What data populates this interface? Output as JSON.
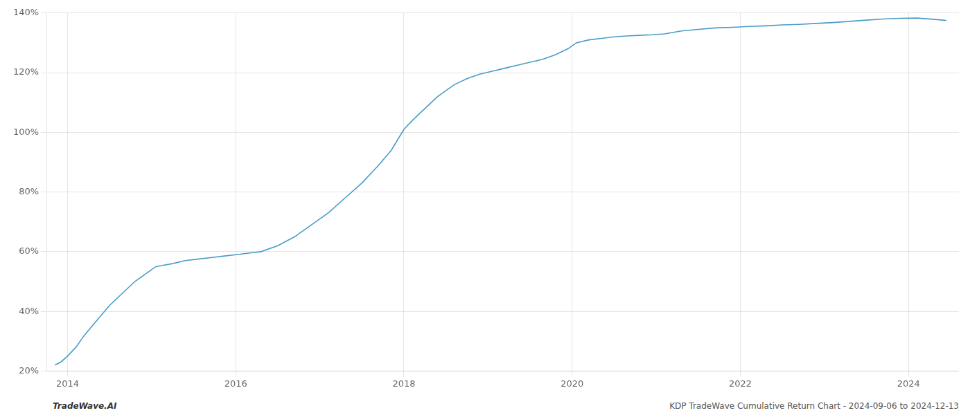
{
  "chart_data": {
    "type": "line",
    "x": [
      2013.85,
      2013.92,
      2014.0,
      2014.1,
      2014.2,
      2014.35,
      2014.5,
      2014.65,
      2014.8,
      2014.95,
      2015.05,
      2015.15,
      2015.25,
      2015.4,
      2015.55,
      2015.7,
      2015.85,
      2016.0,
      2016.15,
      2016.3,
      2016.5,
      2016.7,
      2016.9,
      2017.1,
      2017.3,
      2017.5,
      2017.7,
      2017.85,
      2018.0,
      2018.1,
      2018.25,
      2018.4,
      2018.6,
      2018.75,
      2018.9,
      2019.05,
      2019.2,
      2019.35,
      2019.5,
      2019.65,
      2019.8,
      2019.95,
      2020.05,
      2020.2,
      2020.35,
      2020.5,
      2020.65,
      2020.8,
      2020.95,
      2021.1,
      2021.3,
      2021.5,
      2021.7,
      2021.9,
      2022.1,
      2022.3,
      2022.5,
      2022.7,
      2022.9,
      2023.1,
      2023.3,
      2023.5,
      2023.7,
      2023.9,
      2024.1,
      2024.3,
      2024.45
    ],
    "values": [
      22,
      23,
      25,
      28,
      32,
      37,
      42,
      46,
      50,
      53,
      55,
      55.5,
      56,
      57,
      57.5,
      58,
      58.5,
      59,
      59.5,
      60,
      62,
      65,
      69,
      73,
      78,
      83,
      89,
      94,
      101,
      104,
      108,
      112,
      116,
      118,
      119.5,
      120.5,
      121.5,
      122.5,
      123.5,
      124.5,
      126,
      128,
      130,
      131,
      131.5,
      132,
      132.3,
      132.5,
      132.7,
      133,
      134,
      134.5,
      135,
      135.2,
      135.5,
      135.7,
      136.0,
      136.2,
      136.5,
      136.8,
      137.2,
      137.6,
      138.0,
      138.2,
      138.3,
      137.9,
      137.5
    ],
    "color": "#4A9CC7",
    "xlim": [
      2013.75,
      2024.6
    ],
    "ylim": [
      20,
      140
    ],
    "xticks": [
      2014,
      2016,
      2018,
      2020,
      2022,
      2024
    ],
    "yticks": [
      {
        "value": 20,
        "label": "20%"
      },
      {
        "value": 40,
        "label": "40%"
      },
      {
        "value": 60,
        "label": "60%"
      },
      {
        "value": 80,
        "label": "80%"
      },
      {
        "value": 100,
        "label": "100%"
      },
      {
        "value": 120,
        "label": "120%"
      },
      {
        "value": 140,
        "label": "140%"
      }
    ],
    "grid": true,
    "annotations": [
      "TradeWave.AI",
      "KDP TradeWave Cumulative Return Chart - 2024-09-06 to 2024-12-13"
    ]
  }
}
